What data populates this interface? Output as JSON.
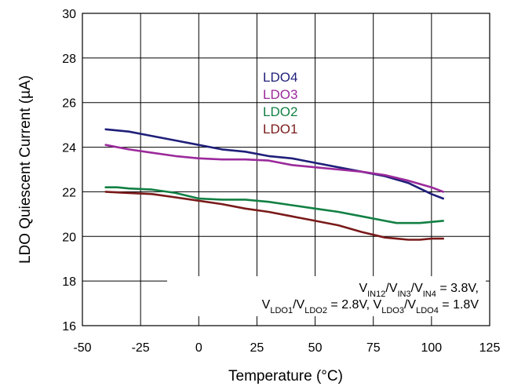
{
  "chart_data": {
    "type": "line",
    "title": "",
    "xlabel": "Temperature (°C)",
    "ylabel": "LDO Quiescent Current (µA)",
    "xlim": [
      -50,
      125
    ],
    "ylim": [
      16,
      30
    ],
    "xticks": [
      -50,
      -25,
      0,
      25,
      50,
      75,
      100,
      125
    ],
    "yticks": [
      16,
      18,
      20,
      22,
      24,
      26,
      28,
      30
    ],
    "grid": true,
    "legend_position": "top-center",
    "series": [
      {
        "name": "LDO4",
        "color": "#1f1f7a",
        "x": [
          -40,
          -30,
          -20,
          -10,
          0,
          10,
          20,
          30,
          40,
          50,
          60,
          70,
          80,
          90,
          100,
          105
        ],
        "y": [
          24.8,
          24.7,
          24.5,
          24.3,
          24.1,
          23.9,
          23.8,
          23.6,
          23.5,
          23.3,
          23.1,
          22.9,
          22.7,
          22.4,
          21.9,
          21.7
        ]
      },
      {
        "name": "LDO3",
        "color": "#9b2a9b",
        "x": [
          -40,
          -30,
          -20,
          -10,
          0,
          10,
          20,
          30,
          40,
          50,
          60,
          70,
          80,
          90,
          100,
          105
        ],
        "y": [
          24.1,
          23.9,
          23.75,
          23.6,
          23.5,
          23.45,
          23.45,
          23.4,
          23.2,
          23.1,
          23.0,
          22.9,
          22.75,
          22.5,
          22.2,
          22.0
        ]
      },
      {
        "name": "LDO2",
        "color": "#128044",
        "x": [
          -40,
          -35,
          -30,
          -20,
          -10,
          0,
          10,
          20,
          30,
          40,
          50,
          60,
          70,
          80,
          85,
          90,
          95,
          100,
          105
        ],
        "y": [
          22.2,
          22.2,
          22.15,
          22.1,
          21.95,
          21.7,
          21.65,
          21.65,
          21.55,
          21.4,
          21.25,
          21.1,
          20.9,
          20.7,
          20.6,
          20.6,
          20.6,
          20.65,
          20.7
        ]
      },
      {
        "name": "LDO1",
        "color": "#7a1a1a",
        "x": [
          -40,
          -30,
          -20,
          -10,
          0,
          10,
          20,
          30,
          40,
          50,
          60,
          70,
          80,
          85,
          90,
          95,
          100,
          105
        ],
        "y": [
          22.0,
          21.95,
          21.9,
          21.75,
          21.6,
          21.45,
          21.25,
          21.1,
          20.9,
          20.7,
          20.5,
          20.2,
          19.95,
          19.9,
          19.85,
          19.85,
          19.9,
          19.9
        ]
      }
    ],
    "annotation": {
      "line1": {
        "v1": "V",
        "s1": "IN12",
        "sep1": "/V",
        "s2": "IN3",
        "sep2": "/V",
        "s3": "IN4",
        "tail": " = 3.8V,"
      },
      "line2": {
        "v1": "V",
        "s1": "LDO1",
        "sep1": "/V",
        "s2": "LDO2",
        "mid": " = 2.8V, V",
        "s3": "LDO3",
        "sep2": "/V",
        "s4": "LDO4",
        "tail": " = 1.8V"
      }
    }
  }
}
